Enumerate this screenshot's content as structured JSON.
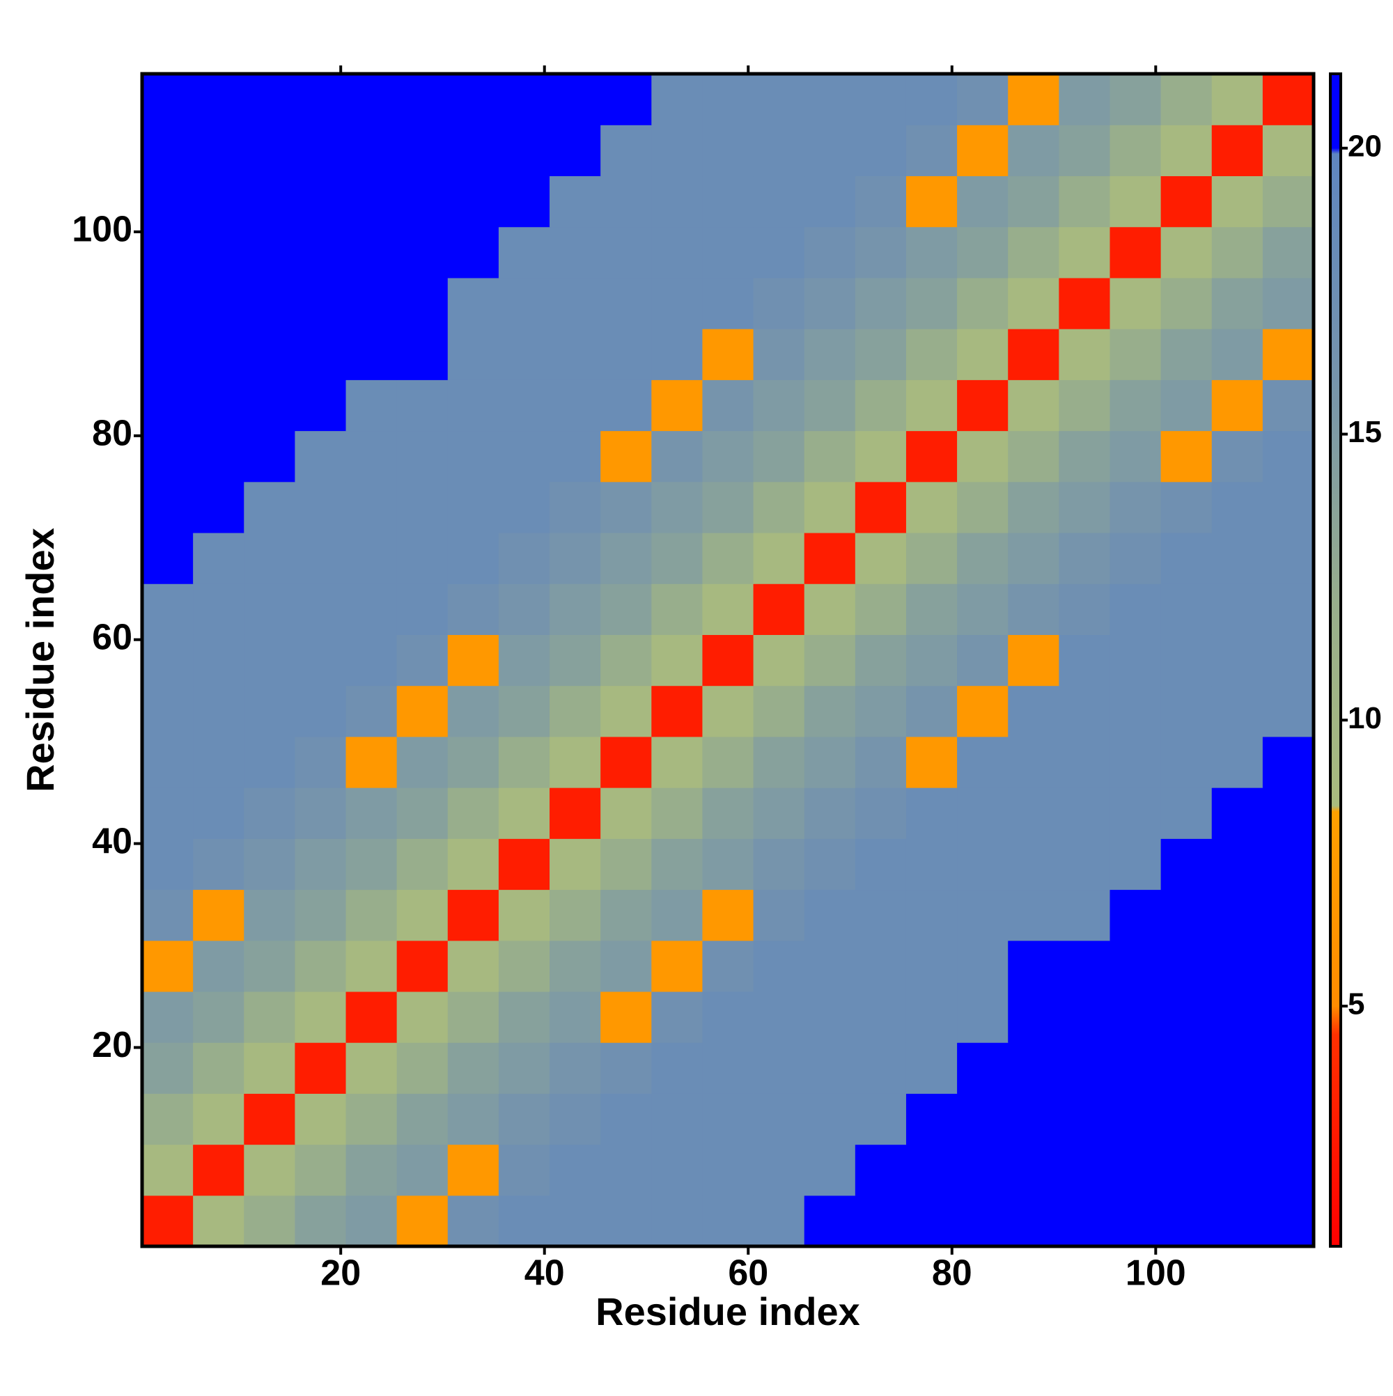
{
  "chart_data": {
    "type": "heatmap",
    "x_label": "Residue index",
    "y_label": "Residue index",
    "x": [
      3,
      8,
      13,
      18,
      23,
      28,
      33,
      38,
      43,
      48,
      53,
      58,
      63,
      68,
      73,
      78,
      83,
      88,
      93,
      98,
      103,
      108,
      113
    ],
    "y": [
      3,
      8,
      13,
      18,
      23,
      28,
      33,
      38,
      43,
      48,
      53,
      58,
      63,
      68,
      73,
      78,
      83,
      88,
      93,
      98,
      103,
      108,
      113
    ],
    "z": [
      [
        3,
        9,
        12,
        14,
        15,
        7,
        17,
        18,
        18,
        18,
        18,
        18,
        18,
        20,
        20,
        20,
        20,
        22,
        22,
        22,
        22,
        22,
        22
      ],
      [
        9,
        3,
        9,
        12,
        14,
        15,
        7,
        17,
        18,
        18,
        18,
        18,
        18,
        18,
        20,
        20,
        20,
        22,
        22,
        22,
        22,
        22,
        22
      ],
      [
        12,
        9,
        3,
        9,
        12,
        14,
        15,
        16,
        17,
        18,
        18,
        18,
        18,
        18,
        18,
        20,
        20,
        22,
        22,
        22,
        22,
        22,
        22
      ],
      [
        14,
        12,
        9,
        3,
        9,
        12,
        14,
        15,
        16,
        17,
        18,
        18,
        18,
        18,
        18,
        18,
        20,
        22,
        22,
        22,
        22,
        22,
        22
      ],
      [
        15,
        14,
        12,
        9,
        3,
        9,
        12,
        14,
        15,
        7,
        17,
        18,
        18,
        18,
        18,
        18,
        18,
        22,
        22,
        22,
        22,
        22,
        22
      ],
      [
        7,
        15,
        14,
        12,
        9,
        3,
        9,
        12,
        14,
        15,
        7,
        17,
        18,
        18,
        18,
        18,
        18,
        22,
        22,
        22,
        22,
        22,
        22
      ],
      [
        17,
        7,
        15,
        14,
        12,
        9,
        3,
        9,
        12,
        14,
        15,
        7,
        17,
        18,
        18,
        18,
        18,
        18,
        18,
        20,
        20,
        20,
        20
      ],
      [
        18,
        17,
        16,
        15,
        14,
        12,
        9,
        3,
        9,
        12,
        14,
        15,
        16,
        17,
        18,
        18,
        18,
        18,
        18,
        18,
        20,
        20,
        20
      ],
      [
        18,
        18,
        17,
        16,
        15,
        14,
        12,
        9,
        3,
        9,
        12,
        14,
        15,
        16,
        17,
        18,
        18,
        18,
        18,
        18,
        18,
        20,
        20
      ],
      [
        18,
        18,
        18,
        17,
        7,
        15,
        14,
        12,
        9,
        3,
        9,
        12,
        14,
        15,
        16,
        7,
        18,
        18,
        18,
        18,
        18,
        18,
        20
      ],
      [
        18,
        18,
        18,
        18,
        17,
        7,
        15,
        14,
        12,
        9,
        3,
        9,
        12,
        14,
        15,
        16,
        7,
        18,
        18,
        18,
        18,
        18,
        18
      ],
      [
        18,
        18,
        18,
        18,
        18,
        17,
        7,
        15,
        14,
        12,
        9,
        3,
        9,
        12,
        14,
        15,
        16,
        7,
        18,
        18,
        18,
        18,
        18
      ],
      [
        18,
        18,
        18,
        18,
        18,
        18,
        17,
        16,
        15,
        14,
        12,
        9,
        3,
        9,
        12,
        14,
        15,
        16,
        17,
        18,
        18,
        18,
        18
      ],
      [
        20,
        18,
        18,
        18,
        18,
        18,
        18,
        17,
        16,
        15,
        14,
        12,
        9,
        3,
        9,
        12,
        14,
        15,
        16,
        17,
        18,
        18,
        18
      ],
      [
        20,
        20,
        18,
        18,
        18,
        18,
        18,
        18,
        17,
        16,
        15,
        14,
        12,
        9,
        3,
        9,
        12,
        14,
        15,
        16,
        17,
        18,
        18
      ],
      [
        20,
        20,
        20,
        18,
        18,
        18,
        18,
        18,
        18,
        7,
        16,
        15,
        14,
        12,
        9,
        3,
        9,
        12,
        14,
        15,
        7,
        17,
        18
      ],
      [
        20,
        20,
        20,
        20,
        18,
        18,
        18,
        18,
        18,
        18,
        7,
        16,
        15,
        14,
        12,
        9,
        3,
        9,
        12,
        14,
        15,
        7,
        17
      ],
      [
        22,
        22,
        22,
        22,
        22,
        22,
        18,
        18,
        18,
        18,
        18,
        7,
        16,
        15,
        14,
        12,
        9,
        3,
        9,
        12,
        14,
        15,
        7
      ],
      [
        22,
        22,
        22,
        22,
        22,
        22,
        18,
        18,
        18,
        18,
        18,
        18,
        17,
        16,
        15,
        14,
        12,
        9,
        3,
        9,
        12,
        14,
        15
      ],
      [
        22,
        22,
        22,
        22,
        22,
        22,
        20,
        18,
        18,
        18,
        18,
        18,
        18,
        17,
        16,
        15,
        14,
        12,
        9,
        3,
        9,
        12,
        14
      ],
      [
        22,
        22,
        22,
        22,
        22,
        22,
        20,
        20,
        18,
        18,
        18,
        18,
        18,
        18,
        17,
        7,
        15,
        14,
        12,
        9,
        3,
        9,
        12
      ],
      [
        22,
        22,
        22,
        22,
        22,
        22,
        20,
        20,
        20,
        18,
        18,
        18,
        18,
        18,
        18,
        17,
        7,
        15,
        14,
        12,
        9,
        3,
        9
      ],
      [
        22,
        22,
        22,
        22,
        22,
        22,
        20,
        20,
        20,
        20,
        18,
        18,
        18,
        18,
        18,
        18,
        17,
        7,
        15,
        14,
        12,
        9,
        3
      ]
    ],
    "xlim": [
      0.5,
      115.5
    ],
    "ylim": [
      0.5,
      115.5
    ],
    "xticks": [
      20,
      40,
      60,
      80,
      100
    ],
    "yticks": [
      20,
      40,
      60,
      80,
      100
    ],
    "colorbar": {
      "lim": [
        0.8,
        21.3
      ],
      "ticks": [
        5,
        10,
        15,
        20
      ]
    },
    "colorscale": [
      [
        0.8,
        "#ff0000"
      ],
      [
        4.5,
        "#ff3000"
      ],
      [
        5,
        "#ff8c00"
      ],
      [
        8.4,
        "#ffa000"
      ],
      [
        8.5,
        "#a9bb7e"
      ],
      [
        12,
        "#98ae8c"
      ],
      [
        16,
        "#7694ac"
      ],
      [
        19.9,
        "#5f86c0"
      ],
      [
        20,
        "#0000ff"
      ],
      [
        21.3,
        "#0000ff"
      ]
    ]
  }
}
